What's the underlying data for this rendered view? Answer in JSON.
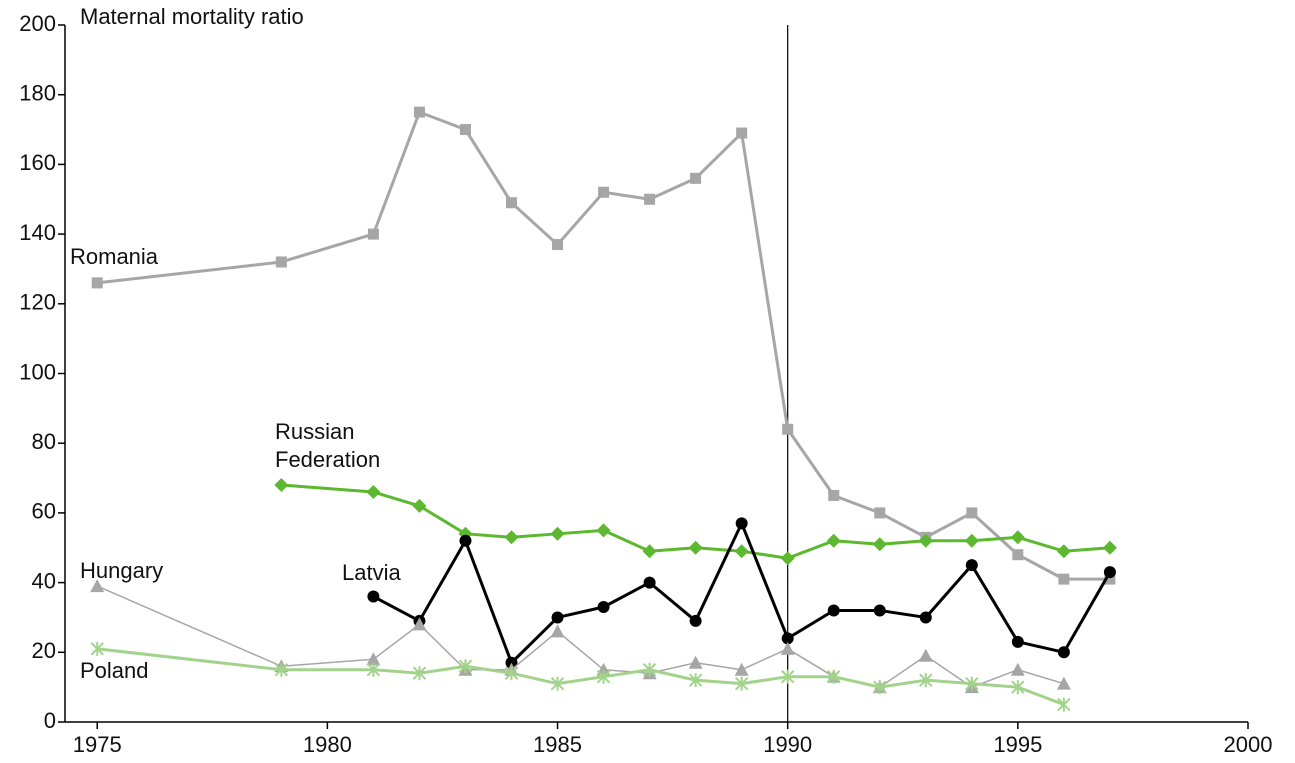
{
  "chart_data": {
    "type": "line",
    "title": "Maternal mortality ratio",
    "x": [
      1975,
      1979,
      1981,
      1982,
      1983,
      1984,
      1985,
      1986,
      1987,
      1988,
      1989,
      1990,
      1991,
      1992,
      1993,
      1994,
      1995,
      1996,
      1997
    ],
    "series": [
      {
        "name": "Romania",
        "color": "#a6a6a6",
        "marker": "square",
        "width": 3,
        "values": [
          126,
          132,
          140,
          175,
          170,
          149,
          137,
          152,
          150,
          156,
          169,
          84,
          65,
          60,
          53,
          60,
          48,
          41,
          41
        ]
      },
      {
        "name": "Russian Federation",
        "color": "#5bb82f",
        "marker": "diamond",
        "width": 3,
        "values": [
          null,
          68,
          66,
          62,
          54,
          53,
          54,
          55,
          49,
          50,
          49,
          47,
          52,
          51,
          52,
          52,
          53,
          49,
          50
        ]
      },
      {
        "name": "Latvia",
        "color": "#000000",
        "marker": "circle",
        "width": 3,
        "values": [
          null,
          null,
          36,
          29,
          52,
          17,
          30,
          33,
          40,
          29,
          57,
          24,
          32,
          32,
          30,
          45,
          23,
          20,
          43
        ]
      },
      {
        "name": "Hungary",
        "color": "#a6a6a6",
        "marker": "triangle",
        "width": 1.5,
        "values": [
          39,
          16,
          18,
          28,
          15,
          15,
          26,
          15,
          14,
          17,
          15,
          21,
          13,
          10,
          19,
          10,
          15,
          11,
          null
        ]
      },
      {
        "name": "Poland",
        "color": "#a2d38a",
        "marker": "star",
        "width": 3,
        "values": [
          21,
          15,
          15,
          14,
          16,
          14,
          11,
          13,
          15,
          12,
          11,
          13,
          13,
          10,
          12,
          11,
          10,
          5,
          null
        ]
      }
    ],
    "xlim": [
      1974.3,
      2000
    ],
    "xticks": [
      1975,
      1980,
      1985,
      1990,
      1995,
      2000
    ],
    "ylim": [
      0,
      200
    ],
    "yticks": [
      0,
      20,
      40,
      60,
      80,
      100,
      120,
      140,
      160,
      180,
      200
    ],
    "vline": 1990
  }
}
